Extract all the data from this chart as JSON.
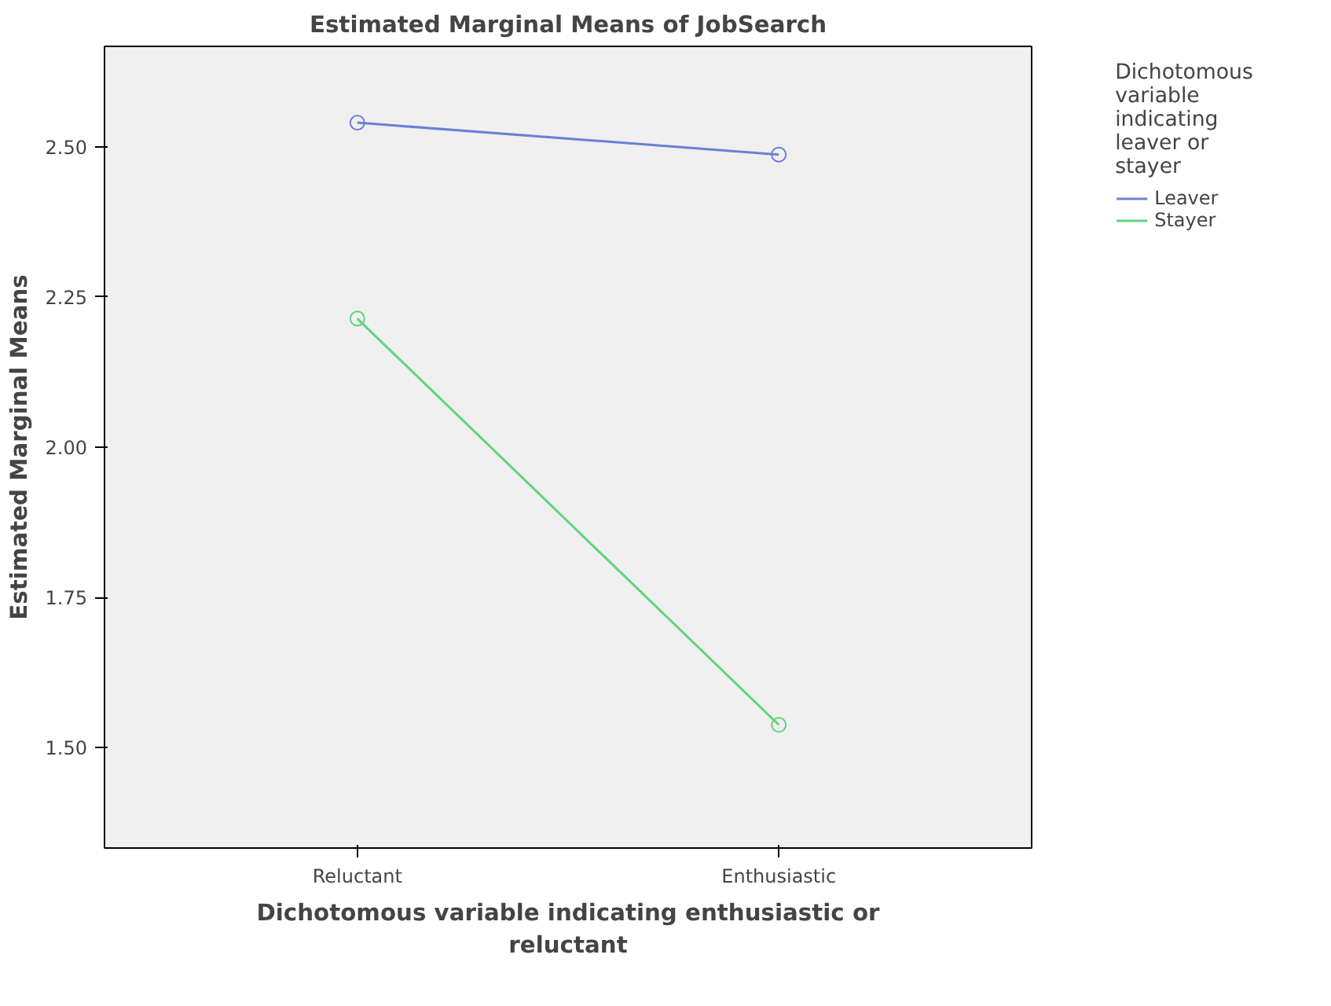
{
  "chart_data": {
    "type": "line",
    "title": "Estimated Marginal Means of JobSearch",
    "xlabel": "Dichotomous variable indicating enthusiastic or reluctant",
    "ylabel": "Estimated Marginal Means",
    "legend_title": "Dichotomous variable indicating leaver or stayer",
    "categories": [
      "Reluctant",
      "Enthusiastic"
    ],
    "series": [
      {
        "name": "Leaver",
        "color": "#6a80d6",
        "values": [
          2.54,
          2.487
        ]
      },
      {
        "name": "Stayer",
        "color": "#5fd47c",
        "values": [
          2.214,
          1.538
        ]
      }
    ],
    "ylim": [
      1.333,
      2.667
    ],
    "yticks": [
      {
        "value": 1.5,
        "label": "1.50"
      },
      {
        "value": 1.75,
        "label": "1.75"
      },
      {
        "value": 2.0,
        "label": "2.00"
      },
      {
        "value": 2.25,
        "label": "2.25"
      },
      {
        "value": 2.5,
        "label": "2.50"
      }
    ],
    "grid": false,
    "legend": "right",
    "marker": "circle",
    "line_style": "solid"
  }
}
